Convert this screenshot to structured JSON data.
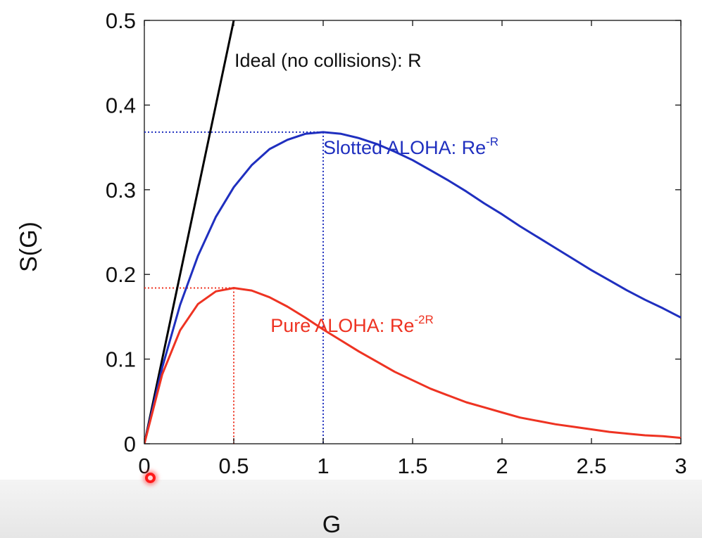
{
  "chart_data": {
    "type": "line",
    "xlabel": "G",
    "ylabel": "S(G)",
    "xlim": [
      0,
      3
    ],
    "ylim": [
      0,
      0.5
    ],
    "xticks": [
      "0",
      "0.5",
      "1",
      "1.5",
      "2",
      "2.5",
      "3"
    ],
    "yticks": [
      "0",
      "0.1",
      "0.2",
      "0.3",
      "0.4",
      "0.5"
    ],
    "grid": false,
    "series": [
      {
        "key": "ideal",
        "color": "#000000",
        "x": [
          0,
          0.1,
          0.2,
          0.3,
          0.4,
          0.5
        ],
        "y": [
          0,
          0.1,
          0.2,
          0.3,
          0.4,
          0.5
        ]
      },
      {
        "key": "slotted",
        "color": "#1f2fbf",
        "x": [
          0,
          0.1,
          0.2,
          0.3,
          0.4,
          0.5,
          0.6,
          0.7,
          0.8,
          0.9,
          1.0,
          1.1,
          1.2,
          1.3,
          1.4,
          1.5,
          1.6,
          1.7,
          1.8,
          1.9,
          2.0,
          2.1,
          2.2,
          2.3,
          2.4,
          2.5,
          2.6,
          2.7,
          2.8,
          2.9,
          3.0
        ],
        "y": [
          0,
          0.09,
          0.164,
          0.222,
          0.268,
          0.303,
          0.329,
          0.348,
          0.359,
          0.366,
          0.368,
          0.366,
          0.361,
          0.354,
          0.345,
          0.335,
          0.323,
          0.311,
          0.298,
          0.284,
          0.271,
          0.257,
          0.244,
          0.231,
          0.218,
          0.205,
          0.193,
          0.181,
          0.17,
          0.16,
          0.149
        ]
      },
      {
        "key": "pure",
        "color": "#ee3322",
        "x": [
          0,
          0.1,
          0.2,
          0.3,
          0.4,
          0.5,
          0.6,
          0.7,
          0.8,
          0.9,
          1.0,
          1.1,
          1.2,
          1.3,
          1.4,
          1.5,
          1.6,
          1.7,
          1.8,
          1.9,
          2.0,
          2.1,
          2.2,
          2.3,
          2.4,
          2.5,
          2.6,
          2.7,
          2.8,
          2.9,
          3.0
        ],
        "y": [
          0,
          0.082,
          0.134,
          0.165,
          0.18,
          0.184,
          0.181,
          0.173,
          0.162,
          0.149,
          0.135,
          0.122,
          0.109,
          0.097,
          0.085,
          0.075,
          0.065,
          0.057,
          0.049,
          0.043,
          0.037,
          0.031,
          0.027,
          0.023,
          0.02,
          0.017,
          0.014,
          0.012,
          0.01,
          0.009,
          0.007
        ]
      }
    ],
    "reference_lines": [
      {
        "color": "#1f2fbf",
        "x": 1.0,
        "y": 0.368
      },
      {
        "color": "#ee3322",
        "x": 0.5,
        "y": 0.184
      }
    ],
    "annotations": [
      {
        "key": "ideal",
        "color": "#111111",
        "text": "Ideal (no collisions): R",
        "sup": "",
        "x": 0.5,
        "y": 0.445
      },
      {
        "key": "slotted",
        "color": "#1f2fbf",
        "text": "Slotted ALOHA: Re",
        "sup": "-R",
        "x": 1.5,
        "y": 0.342
      },
      {
        "key": "pure",
        "color": "#ee3322",
        "text": "Pure ALOHA: Re",
        "sup": "-2R",
        "x": 1.06,
        "y": 0.132
      }
    ]
  }
}
